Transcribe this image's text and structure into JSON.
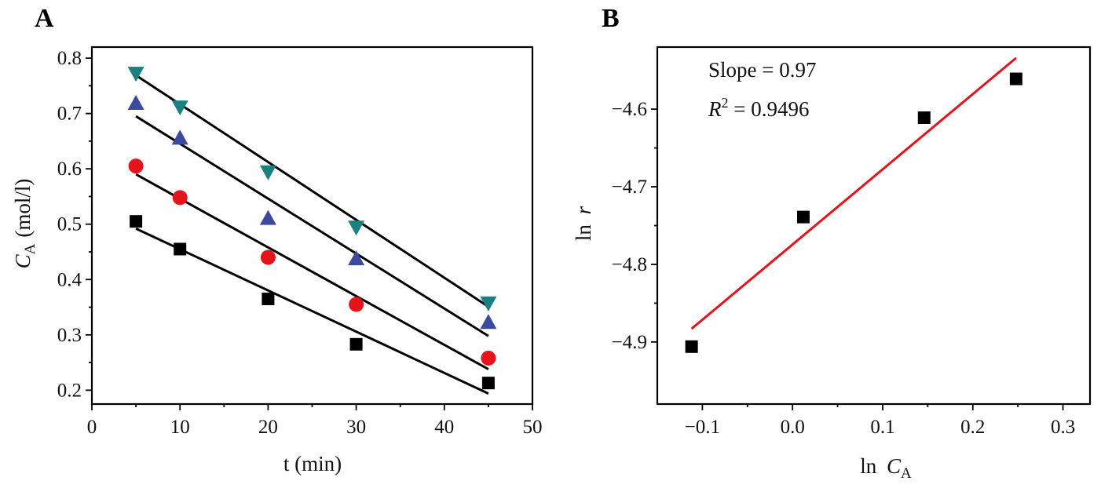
{
  "chart_data": [
    {
      "panel": "A",
      "type": "scatter",
      "xlabel": "t (min)",
      "ylabel_symbol": "C",
      "ylabel_sub": "A",
      "ylabel_unit": "(mol/l)",
      "xlim": [
        0,
        50
      ],
      "ylim": [
        0.175,
        0.82
      ],
      "xticks": [
        0,
        10,
        20,
        30,
        40,
        50
      ],
      "xtick_labels": [
        "0",
        "10",
        "20",
        "30",
        "40",
        "50"
      ],
      "yticks": [
        0.2,
        0.3,
        0.4,
        0.5,
        0.6,
        0.7,
        0.8
      ],
      "ytick_labels": [
        "0.2",
        "0.3",
        "0.4",
        "0.5",
        "0.6",
        "0.7",
        "0.8"
      ],
      "grid": false,
      "series": [
        {
          "name": "series-1",
          "marker": "square",
          "color": "#000000",
          "x": [
            5,
            10,
            20,
            30,
            45
          ],
          "y": [
            0.505,
            0.455,
            0.365,
            0.283,
            0.213
          ],
          "fit": {
            "x": [
              5,
              45
            ],
            "y": [
              0.492,
              0.194
            ]
          }
        },
        {
          "name": "series-2",
          "marker": "circle",
          "color": "#e5141b",
          "x": [
            5,
            10,
            20,
            30,
            45
          ],
          "y": [
            0.605,
            0.548,
            0.44,
            0.355,
            0.258
          ],
          "fit": {
            "x": [
              5,
              45
            ],
            "y": [
              0.59,
              0.238
            ]
          }
        },
        {
          "name": "series-3",
          "marker": "triangle-up",
          "color": "#3b4a9c",
          "x": [
            5,
            10,
            20,
            30,
            45
          ],
          "y": [
            0.718,
            0.655,
            0.51,
            0.437,
            0.322
          ],
          "fit": {
            "x": [
              5,
              45
            ],
            "y": [
              0.695,
              0.298
            ]
          }
        },
        {
          "name": "series-4",
          "marker": "triangle-down",
          "color": "#1a8080",
          "x": [
            5,
            10,
            20,
            30,
            45
          ],
          "y": [
            0.773,
            0.712,
            0.595,
            0.495,
            0.358
          ],
          "fit": {
            "x": [
              5,
              45
            ],
            "y": [
              0.769,
              0.351
            ]
          }
        }
      ]
    },
    {
      "panel": "B",
      "type": "scatter",
      "xlabel_prefix": "ln ",
      "xlabel_symbol": "C",
      "xlabel_sub": "A",
      "ylabel_prefix": "ln ",
      "ylabel_symbol": "r",
      "xlim": [
        -0.15,
        0.33
      ],
      "ylim": [
        -4.98,
        -4.52
      ],
      "xticks": [
        -0.1,
        0.0,
        0.1,
        0.2,
        0.3
      ],
      "xtick_labels": [
        "−0.1",
        "0.0",
        "0.1",
        "0.2",
        "0.3"
      ],
      "yticks": [
        -4.9,
        -4.8,
        -4.7,
        -4.6
      ],
      "ytick_labels": [
        "−4.9",
        "−4.8",
        "−4.7",
        "−4.6"
      ],
      "grid": false,
      "series": [
        {
          "name": "ln-r",
          "marker": "square",
          "color": "#000000",
          "x": [
            -0.112,
            0.012,
            0.146,
            0.248
          ],
          "y": [
            -4.906,
            -4.739,
            -4.611,
            -4.561
          ],
          "fit": {
            "x": [
              -0.112,
              0.248
            ],
            "y": [
              -4.883,
              -4.534
            ],
            "color": "#e5141b"
          }
        }
      ],
      "annotations": {
        "slope_text": "Slope = 0.97",
        "r2_symbol": "R",
        "r2_exp": "2",
        "r2_value": " = 0.9496"
      }
    }
  ]
}
